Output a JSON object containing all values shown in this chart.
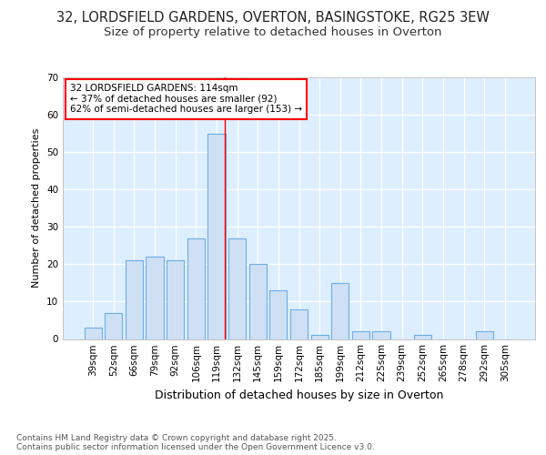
{
  "title1": "32, LORDSFIELD GARDENS, OVERTON, BASINGSTOKE, RG25 3EW",
  "title2": "Size of property relative to detached houses in Overton",
  "xlabel": "Distribution of detached houses by size in Overton",
  "ylabel": "Number of detached properties",
  "categories": [
    "39sqm",
    "52sqm",
    "66sqm",
    "79sqm",
    "92sqm",
    "106sqm",
    "119sqm",
    "132sqm",
    "145sqm",
    "159sqm",
    "172sqm",
    "185sqm",
    "199sqm",
    "212sqm",
    "225sqm",
    "239sqm",
    "252sqm",
    "265sqm",
    "278sqm",
    "292sqm",
    "305sqm"
  ],
  "values": [
    3,
    7,
    21,
    22,
    21,
    27,
    55,
    27,
    20,
    13,
    8,
    1,
    15,
    2,
    2,
    0,
    1,
    0,
    0,
    2,
    0
  ],
  "bar_color": "#cfe0f5",
  "bar_edge_color": "#6aaee8",
  "red_line_x": 6.42,
  "ylim": [
    0,
    70
  ],
  "yticks": [
    0,
    10,
    20,
    30,
    40,
    50,
    60,
    70
  ],
  "annotation_line1": "32 LORDSFIELD GARDENS: 114sqm",
  "annotation_line2": "← 37% of detached houses are smaller (92)",
  "annotation_line3": "62% of semi-detached houses are larger (153) →",
  "footer1": "Contains HM Land Registry data © Crown copyright and database right 2025.",
  "footer2": "Contains public sector information licensed under the Open Government Licence v3.0.",
  "fig_bg_color": "#ffffff",
  "plot_bg_color": "#ddeeff",
  "grid_color": "#ffffff",
  "title_fontsize": 10.5,
  "subtitle_fontsize": 9.5,
  "ylabel_fontsize": 8,
  "xlabel_fontsize": 9,
  "tick_fontsize": 7.5,
  "footer_fontsize": 6.5,
  "ann_fontsize": 7.5
}
